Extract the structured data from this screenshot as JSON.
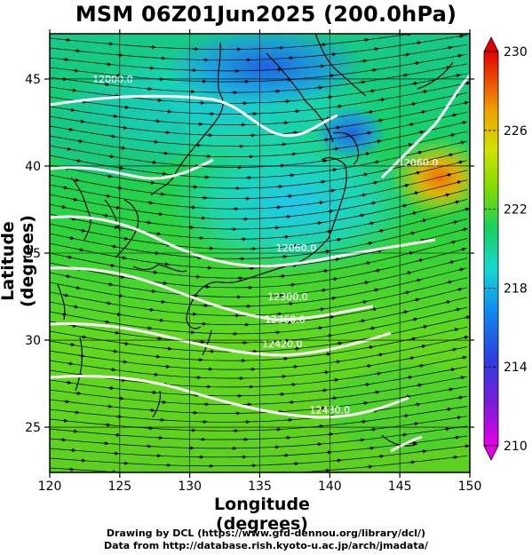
{
  "title": "MSM 06Z01Jun2025 (200.0hPa)",
  "x_axis": {
    "label": "Longitude (degrees)",
    "range": [
      120,
      150
    ],
    "ticks": [
      "120",
      "125",
      "130",
      "135",
      "140",
      "145",
      "150"
    ]
  },
  "y_axis": {
    "label": "Latitude  (degrees)",
    "range": [
      22.4,
      47.6
    ],
    "ticks": [
      "25",
      "30",
      "35",
      "40",
      "45"
    ]
  },
  "colorbar": {
    "range": [
      210,
      230
    ],
    "tick_labels": [
      "230",
      "226",
      "222",
      "218",
      "214",
      "210"
    ],
    "colors": [
      "#e400e4",
      "#3a33d6",
      "#0e8ef0",
      "#19e3d2",
      "#17d25a",
      "#7bdc00",
      "#cfe200",
      "#f0b300",
      "#f26600",
      "#e20000"
    ]
  },
  "contour_labels": [
    {
      "text": "12000.0",
      "lon": 124.5,
      "lat": 44.8
    },
    {
      "text": "12060.0",
      "lon": 146.3,
      "lat": 40.0
    },
    {
      "text": "12060.0",
      "lon": 137.6,
      "lat": 35.1
    },
    {
      "text": "12300.0",
      "lon": 137.0,
      "lat": 32.3
    },
    {
      "text": "12360.0",
      "lon": 136.8,
      "lat": 31.0
    },
    {
      "text": "12420.0",
      "lon": 136.6,
      "lat": 29.6
    },
    {
      "text": "12480.0",
      "lon": 140.0,
      "lat": 25.8
    }
  ],
  "credits": {
    "line1": "Drawing by DCL (https://www.gfd-dennou.org/library/dcl/)",
    "line2": "Data from http://database.rish.kyoto-u.ac.jp/arch/jmadata/"
  }
}
